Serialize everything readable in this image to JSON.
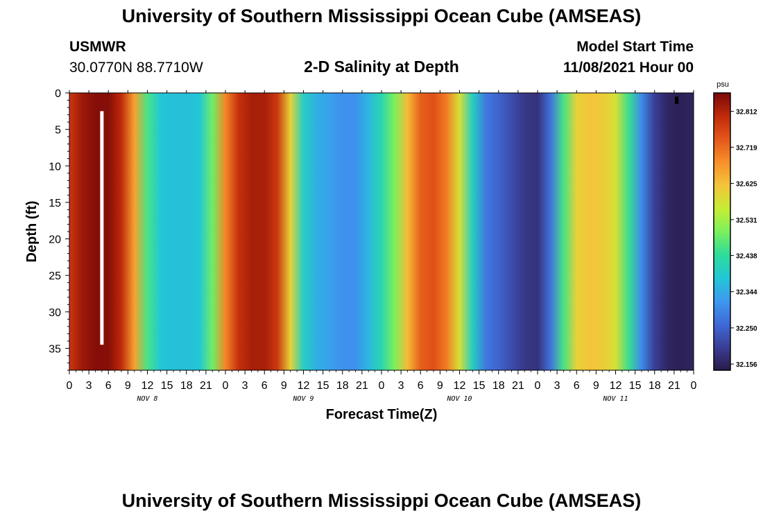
{
  "header": {
    "title": "University of Southern Mississippi Ocean Cube (AMSEAS)",
    "station": "USMWR",
    "coordinates": "30.0770N  88.7710W",
    "subtitle": "2-D Salinity at Depth",
    "start_label": "Model Start Time",
    "start_value": "11/08/2021 Hour 00"
  },
  "footer": {
    "title": "University of Southern Mississippi Ocean Cube (AMSEAS)"
  },
  "chart_data": {
    "type": "heatmap",
    "title": "2-D Salinity at Depth",
    "xlabel": "Forecast Time(Z)",
    "ylabel": "Depth (ft)",
    "xlim": [
      0,
      96
    ],
    "ylim": [
      0,
      38
    ],
    "y_ticks": [
      0,
      5,
      10,
      15,
      20,
      25,
      30,
      35
    ],
    "x_tick_labels": [
      "0",
      "3",
      "6",
      "9",
      "12",
      "15",
      "18",
      "21",
      "0",
      "3",
      "6",
      "9",
      "12",
      "15",
      "18",
      "21",
      "0",
      "3",
      "6",
      "9",
      "12",
      "15",
      "18",
      "21",
      "0",
      "3",
      "6",
      "9",
      "12",
      "15",
      "18",
      "21",
      "0"
    ],
    "date_labels": [
      {
        "label": "NOV 8",
        "hour": 12
      },
      {
        "label": "NOV 9",
        "hour": 36
      },
      {
        "label": "NOV 10",
        "hour": 60
      },
      {
        "label": "NOV 11",
        "hour": 84
      }
    ],
    "colorbar": {
      "unit": "psu",
      "min": 32.14,
      "max": 32.86,
      "tick_values": [
        32.812,
        32.719,
        32.625,
        32.531,
        32.438,
        32.344,
        32.25,
        32.156
      ],
      "tick_labels": [
        "32.812",
        "32.719",
        "32.625",
        "32.531",
        "32.438",
        "32.344",
        "32.250",
        "32.156"
      ],
      "colors": [
        "#2a1a48",
        "#3a3e95",
        "#3f6ad8",
        "#3e99f0",
        "#22c7d6",
        "#2edc9a",
        "#7bf05c",
        "#c7ed34",
        "#f4c43a",
        "#f8902a",
        "#e4561a",
        "#bf2a0a",
        "#7a0808"
      ]
    },
    "time_hours": [
      0,
      2,
      4,
      6,
      8,
      10,
      12,
      14,
      16,
      18,
      20,
      22,
      24,
      26,
      28,
      30,
      32,
      34,
      36,
      38,
      40,
      42,
      44,
      46,
      48,
      50,
      52,
      54,
      56,
      58,
      60,
      62,
      64,
      66,
      68,
      70,
      72,
      74,
      76,
      78,
      80,
      82,
      84,
      86,
      88,
      90,
      92,
      94,
      96
    ],
    "salinity_psu": [
      32.78,
      32.83,
      32.85,
      32.85,
      32.8,
      32.66,
      32.46,
      32.38,
      32.37,
      32.37,
      32.38,
      32.49,
      32.69,
      32.79,
      32.82,
      32.82,
      32.78,
      32.6,
      32.4,
      32.35,
      32.33,
      32.31,
      32.31,
      32.36,
      32.42,
      32.5,
      32.63,
      32.73,
      32.75,
      32.7,
      32.58,
      32.4,
      32.28,
      32.25,
      32.22,
      32.19,
      32.18,
      32.27,
      32.46,
      32.6,
      32.62,
      32.61,
      32.58,
      32.45,
      32.3,
      32.2,
      32.16,
      32.15,
      32.16
    ],
    "annotations": [
      {
        "type": "vertical-bar",
        "color": "#ffffff",
        "hour": 5,
        "depth_range": [
          2.5,
          34.5
        ]
      },
      {
        "type": "vertical-bar",
        "color": "#000000",
        "hour": 93.4,
        "depth_range": [
          0.5,
          1.5
        ]
      }
    ]
  }
}
